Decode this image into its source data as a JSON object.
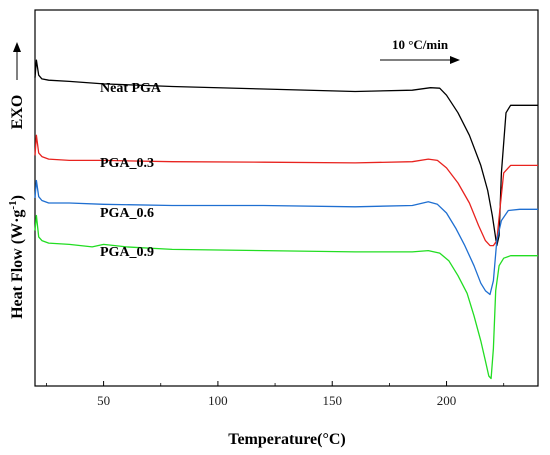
{
  "chart_data": {
    "type": "line",
    "xlabel": "Temperature(°C)",
    "ylabel_main": "Heat Flow (W·g",
    "ylabel_sup": "-1",
    "ylabel_close": ")",
    "exo_label": "EXO",
    "annotation": "10 °C/min",
    "xlim": [
      20,
      240
    ],
    "ylim": [
      -7,
      8
    ],
    "xticks": [
      50,
      100,
      150,
      200
    ],
    "tick_labels": [
      "50",
      "100",
      "150",
      "200"
    ],
    "grid": false,
    "series": [
      {
        "name": "Neat PGA",
        "color": "#000000",
        "x": [
          20,
          20.6,
          21.6,
          23,
          26,
          35,
          50,
          80,
          120,
          160,
          185,
          193,
          197,
          200,
          205,
          210,
          215,
          218,
          220,
          222,
          223,
          224,
          226,
          228,
          232,
          240
        ],
        "y": [
          5.3,
          6.0,
          5.4,
          5.25,
          5.2,
          5.15,
          5.05,
          4.95,
          4.85,
          4.75,
          4.8,
          4.9,
          4.88,
          4.6,
          3.9,
          3.0,
          1.8,
          0.8,
          -0.2,
          -1.4,
          -1.0,
          1.5,
          3.9,
          4.2,
          4.2,
          4.2
        ]
      },
      {
        "name": "PGA_0.3",
        "color": "#e8231f",
        "x": [
          20,
          20.6,
          21.6,
          23,
          26,
          35,
          50,
          80,
          120,
          160,
          185,
          192,
          196,
          200,
          205,
          210,
          214,
          217,
          219,
          220.5,
          222,
          223.5,
          225,
          228,
          232,
          240
        ],
        "y": [
          2.2,
          3.0,
          2.3,
          2.15,
          2.05,
          2.0,
          2.0,
          1.95,
          1.93,
          1.9,
          1.95,
          2.05,
          2.0,
          1.7,
          1.1,
          0.3,
          -0.6,
          -1.2,
          -1.4,
          -1.4,
          -1.2,
          0.2,
          1.5,
          1.8,
          1.8,
          1.8
        ]
      },
      {
        "name": "PGA_0.6",
        "color": "#1f6fd1",
        "x": [
          20,
          20.6,
          21.6,
          23,
          26,
          35,
          50,
          80,
          120,
          160,
          185,
          192,
          196,
          200,
          204,
          208,
          212,
          215,
          217,
          219,
          220.5,
          222,
          224,
          227,
          232,
          240
        ],
        "y": [
          0.5,
          1.2,
          0.55,
          0.4,
          0.3,
          0.3,
          0.25,
          0.2,
          0.2,
          0.15,
          0.2,
          0.35,
          0.25,
          -0.1,
          -0.7,
          -1.4,
          -2.2,
          -2.9,
          -3.2,
          -3.35,
          -2.8,
          -1.2,
          -0.4,
          0.0,
          0.05,
          0.05
        ]
      },
      {
        "name": "PGA_0.9",
        "color": "#22dd22",
        "x": [
          20,
          20.6,
          21.6,
          23,
          26,
          35,
          45,
          50,
          60,
          80,
          120,
          160,
          185,
          192,
          197,
          201,
          205,
          209,
          212,
          215,
          217,
          218.5,
          219.5,
          220.5,
          221.5,
          223,
          225,
          228,
          232,
          240
        ],
        "y": [
          -0.8,
          -0.2,
          -1.05,
          -1.2,
          -1.3,
          -1.35,
          -1.45,
          -1.35,
          -1.45,
          -1.55,
          -1.6,
          -1.65,
          -1.65,
          -1.6,
          -1.7,
          -2.0,
          -2.6,
          -3.3,
          -4.2,
          -5.2,
          -6.0,
          -6.6,
          -6.7,
          -5.5,
          -3.2,
          -2.2,
          -1.9,
          -1.8,
          -1.8,
          -1.8
        ]
      }
    ]
  }
}
